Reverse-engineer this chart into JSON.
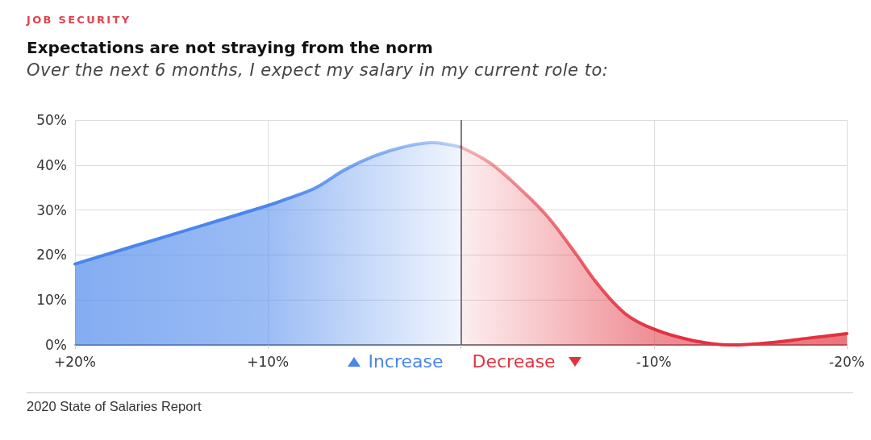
{
  "chart_data": {
    "type": "area",
    "title": "Expectations are not straying from the norm",
    "subtitle": "Over the next 6 months, I expect my salary in my current role to:",
    "annotations": [
      "JOB SECURITY",
      "2020 State of Salaries Report"
    ],
    "xlim": [
      20,
      -20
    ],
    "xticks": [
      {
        "value": 20,
        "label": "+20%"
      },
      {
        "value": 10,
        "label": "+10%"
      },
      {
        "value": 0,
        "label": null
      },
      {
        "value": -10,
        "label": "-10%"
      },
      {
        "value": -20,
        "label": "-20%"
      }
    ],
    "ylim": [
      0,
      50
    ],
    "yticks": [
      {
        "value": 0,
        "label": "0%"
      },
      {
        "value": 10,
        "label": "10%"
      },
      {
        "value": 20,
        "label": "20%"
      },
      {
        "value": 30,
        "label": "30%"
      },
      {
        "value": 40,
        "label": "40%"
      },
      {
        "value": 50,
        "label": "50%"
      }
    ],
    "series": [
      {
        "name": "Increase",
        "color": "#4a86ec",
        "x": [
          20,
          15,
          10,
          9,
          7.5,
          6,
          4.5,
          3,
          1.5,
          0
        ],
        "values": [
          18,
          24.5,
          31,
          32.5,
          35,
          39,
          42,
          44,
          45,
          44
        ]
      },
      {
        "name": "Decrease",
        "color": "#e2323f",
        "x": [
          0,
          -1.5,
          -3,
          -4.5,
          -6,
          -7,
          -8.5,
          -10,
          -12,
          -14,
          -16,
          -18,
          -20
        ],
        "values": [
          44,
          40.5,
          35,
          28.5,
          20,
          14,
          7,
          3.5,
          1,
          0,
          0.5,
          1.5,
          2.5
        ]
      }
    ],
    "ref_lines": [
      {
        "axis": "x",
        "value": 0,
        "color": "#555555"
      }
    ],
    "grid": true,
    "legend": "bottom",
    "marker": "none"
  }
}
